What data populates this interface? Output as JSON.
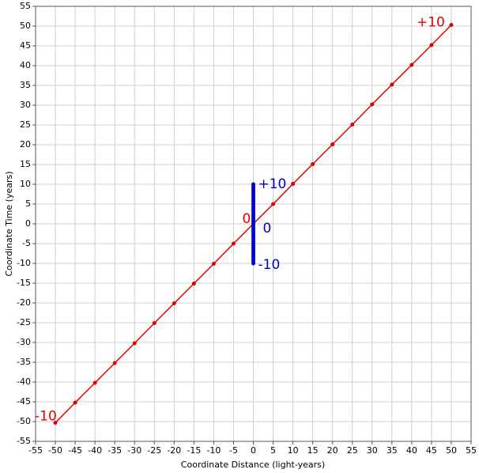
{
  "chart_data": {
    "type": "scatter",
    "xlabel": "Coordinate Distance (light-years)",
    "ylabel": "Coordinate Time (years)",
    "xlim": [
      -55,
      55
    ],
    "ylim": [
      -55,
      55
    ],
    "xticks": [
      -55,
      -50,
      -45,
      -40,
      -35,
      -30,
      -25,
      -20,
      -15,
      -10,
      -5,
      0,
      5,
      10,
      15,
      20,
      25,
      30,
      35,
      40,
      45,
      50,
      55
    ],
    "yticks": [
      -55,
      -50,
      -45,
      -40,
      -35,
      -30,
      -25,
      -20,
      -15,
      -10,
      -5,
      0,
      5,
      10,
      15,
      20,
      25,
      30,
      35,
      40,
      45,
      50,
      55
    ],
    "grid": true,
    "series": [
      {
        "color": "#e00000",
        "x": [
          -50,
          -45,
          -40,
          -35,
          -30,
          -25,
          -20,
          -15,
          -10,
          -5,
          0,
          5,
          10,
          15,
          20,
          25,
          30,
          35,
          40,
          45,
          50
        ],
        "y": [
          -50.3,
          -45.2,
          -40.2,
          -35.2,
          -30.2,
          -25.1,
          -20.1,
          -15.1,
          -10.1,
          -5,
          0,
          5,
          10.1,
          15.1,
          20.1,
          25.1,
          30.2,
          35.2,
          40.2,
          45.2,
          50.3
        ],
        "labels": [
          "-10",
          "0",
          "+10"
        ]
      },
      {
        "color": "#0000cc",
        "x": [
          0,
          0,
          0,
          0,
          0,
          0,
          0,
          0,
          0,
          0,
          0,
          0,
          0,
          0,
          0,
          0,
          0,
          0,
          0,
          0,
          0,
          0,
          0,
          0,
          0,
          0,
          0,
          0,
          0,
          0,
          0,
          0,
          0,
          0,
          0,
          0,
          0,
          0,
          0,
          0,
          0
        ],
        "y": [
          -10,
          -9.5,
          -9,
          -8.5,
          -8,
          -7.5,
          -7,
          -6.5,
          -6,
          -5.5,
          -5,
          -4.5,
          -4,
          -3.5,
          -3,
          -2.5,
          -2,
          -1.5,
          -1,
          -0.5,
          0,
          0.5,
          1,
          1.5,
          2,
          2.5,
          3,
          3.5,
          4,
          4.5,
          5,
          5.5,
          6,
          6.5,
          7,
          7.5,
          8,
          8.5,
          9,
          9.5,
          10
        ],
        "labels": [
          "-10",
          "0",
          "+10"
        ]
      }
    ]
  }
}
